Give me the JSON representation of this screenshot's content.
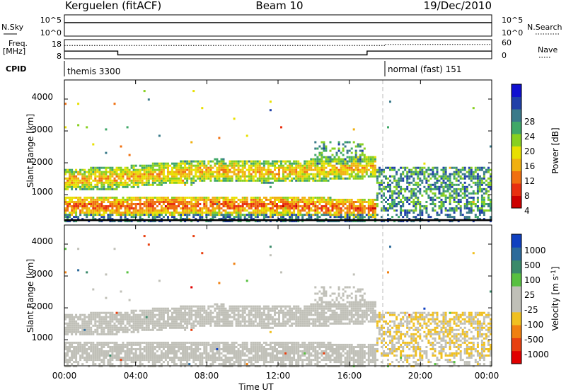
{
  "header": {
    "title_left": "Kerguelen (fitACF)",
    "title_center": "Beam 10",
    "title_right": "19/Dec/2010"
  },
  "strip_nsky": {
    "label_left": "N.Sky",
    "ticks_left": [
      "10^5",
      "10^0"
    ],
    "label_right": "N.Search",
    "ticks_right": [
      "10^5",
      "10^0"
    ]
  },
  "strip_freq": {
    "label_left_1": "Freq.",
    "label_left_2": "[MHz]",
    "ticks_left": [
      "18",
      "8"
    ],
    "label_right": "Nave",
    "ticks_right": [
      "60",
      "0"
    ]
  },
  "cpid": {
    "label": "CPID",
    "segments": [
      {
        "text": "themis 3300",
        "start_hour": 0
      },
      {
        "text": "normal (fast) 151",
        "start_hour": 18
      }
    ]
  },
  "x_axis": {
    "label": "Time UT",
    "ticks": [
      "00:00",
      "04:00",
      "08:00",
      "12:00",
      "16:00",
      "20:00",
      "00:00"
    ]
  },
  "power_panel": {
    "ylabel": "Slant Range [km]",
    "yticks": [
      "4000",
      "3000",
      "2000",
      "1000"
    ],
    "colorbar_label": "Power [dB]",
    "colorbar_ticks": [
      "28",
      "24",
      "20",
      "16",
      "12",
      "8",
      "4"
    ],
    "colors": [
      "#1010d0",
      "#2040a8",
      "#3a7a8a",
      "#40a868",
      "#88d020",
      "#e8e000",
      "#f0b010",
      "#f07010",
      "#e83010",
      "#cc0000"
    ]
  },
  "velocity_panel": {
    "ylabel": "Slant Range [km]",
    "yticks": [
      "4000",
      "3000",
      "2000",
      "1000"
    ],
    "colorbar_label": "Velocity [m s",
    "colorbar_label_sup": "-1",
    "colorbar_label_end": "]",
    "colorbar_ticks": [
      "1000",
      "500",
      "100",
      "25",
      "-25",
      "-100",
      "-500",
      "-1000"
    ],
    "colors": [
      "#1040c0",
      "#2c6a9a",
      "#3a8a6a",
      "#58c040",
      "#c0c0b8",
      "#c0c0b8",
      "#f0c020",
      "#f08010",
      "#e84010",
      "#e00000"
    ]
  },
  "chart_data": {
    "type": "heatmap",
    "x_range_hours": [
      0,
      24
    ],
    "y_range_km": [
      180,
      4600
    ],
    "power_range_db": [
      0,
      32
    ],
    "velocity_range_ms": [
      -1200,
      1200
    ],
    "nave_level": {
      "before_18": 16,
      "after_18": 10
    },
    "freq_level": {
      "0_to_3": 12,
      "3_to_17": 10,
      "17_to_24": 12
    },
    "echo_bands": [
      {
        "name": "band_a",
        "from_hour": 0,
        "to_hour": 17,
        "center_km": [
          1500,
          1550,
          1700,
          1800,
          1750,
          1800,
          1900
        ],
        "width_km": 350,
        "power_db": 16
      },
      {
        "name": "band_b",
        "from_hour": 0,
        "to_hour": 17,
        "center_km": [
          700,
          650,
          700,
          700,
          700,
          650,
          600
        ],
        "width_km": 300,
        "power_db": 20
      }
    ]
  }
}
